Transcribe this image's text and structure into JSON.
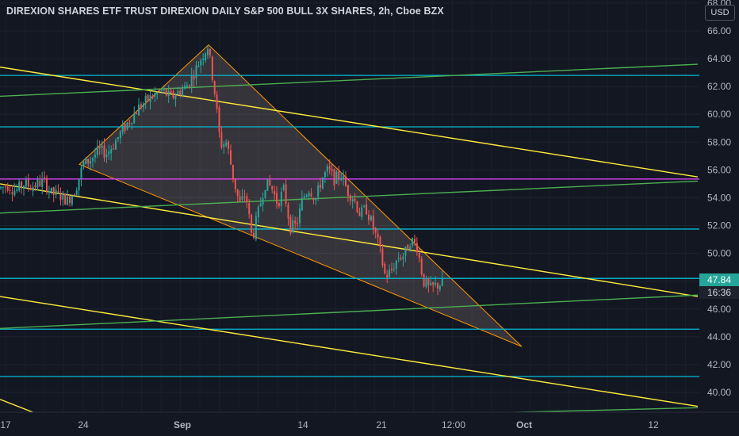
{
  "header": {
    "title": "DIREXION SHARES ETF TRUST DIREXION DAILY S&P 500 BULL 3X SHARES, 2h, Cboe BZX",
    "currency": "USD"
  },
  "price_labels": {
    "last_price": "47.84",
    "countdown": "16:36"
  },
  "colors": {
    "background": "#131722",
    "up": "#26a69a",
    "down": "#ef5350",
    "cyan": "#00bcd4",
    "yellow": "#ffeb3b",
    "green": "#4caf50",
    "magenta": "#e040fb",
    "orange": "#ff9800"
  },
  "chart_data": {
    "type": "candlestick",
    "ylim": [
      38.5,
      68.5
    ],
    "y_ticks": [
      "40.00",
      "42.00",
      "44.00",
      "46.00",
      "48.00",
      "50.00",
      "52.00",
      "54.00",
      "56.00",
      "58.00",
      "60.00",
      "62.00",
      "64.00",
      "66.00",
      "68.00"
    ],
    "x_ticks": [
      {
        "label": "17",
        "bold": false
      },
      {
        "label": "24",
        "bold": false
      },
      {
        "label": "Sep",
        "bold": true
      },
      {
        "label": "14",
        "bold": false
      },
      {
        "label": "21",
        "bold": false
      },
      {
        "label": "12:00",
        "bold": false
      },
      {
        "label": "Oct",
        "bold": true
      },
      {
        "label": "12",
        "bold": false
      }
    ],
    "candles_path": [
      [
        0,
        54.7
      ],
      [
        10,
        54.9
      ],
      [
        20,
        54.5
      ],
      [
        30,
        55.0
      ],
      [
        40,
        54.8
      ],
      [
        55,
        55.2
      ],
      [
        65,
        54.3
      ],
      [
        75,
        54.2
      ],
      [
        85,
        53.8
      ],
      [
        95,
        54.6
      ],
      [
        105,
        56.4
      ],
      [
        115,
        56.8
      ],
      [
        125,
        57.4
      ],
      [
        135,
        57.2
      ],
      [
        145,
        58.0
      ],
      [
        155,
        58.9
      ],
      [
        165,
        59.7
      ],
      [
        175,
        60.5
      ],
      [
        185,
        61.0
      ],
      [
        195,
        61.4
      ],
      [
        205,
        61.7
      ],
      [
        215,
        61.2
      ],
      [
        225,
        61.6
      ],
      [
        235,
        62.0
      ],
      [
        245,
        63.0
      ],
      [
        255,
        64.2
      ],
      [
        262,
        64.9
      ],
      [
        270,
        62.0
      ],
      [
        278,
        57.8
      ],
      [
        286,
        58.0
      ],
      [
        294,
        55.5
      ],
      [
        302,
        53.5
      ],
      [
        310,
        54.3
      ],
      [
        318,
        51.0
      ],
      [
        326,
        53.0
      ],
      [
        334,
        55.0
      ],
      [
        342,
        54.8
      ],
      [
        350,
        53.6
      ],
      [
        358,
        54.6
      ],
      [
        366,
        51.9
      ],
      [
        374,
        52.0
      ],
      [
        382,
        54.0
      ],
      [
        390,
        54.7
      ],
      [
        398,
        53.9
      ],
      [
        406,
        55.4
      ],
      [
        414,
        56.0
      ],
      [
        422,
        55.3
      ],
      [
        430,
        55.7
      ],
      [
        438,
        54.5
      ],
      [
        446,
        54.0
      ],
      [
        454,
        52.8
      ],
      [
        462,
        53.2
      ],
      [
        470,
        52.0
      ],
      [
        478,
        50.5
      ],
      [
        486,
        48.3
      ],
      [
        494,
        48.8
      ],
      [
        502,
        49.7
      ],
      [
        510,
        49.9
      ],
      [
        518,
        51.0
      ],
      [
        526,
        50.5
      ],
      [
        534,
        48.0
      ],
      [
        542,
        47.4
      ],
      [
        550,
        47.7
      ],
      [
        558,
        47.84
      ]
    ],
    "horizontal_levels": [
      {
        "price": 62.8,
        "color": "cyan"
      },
      {
        "price": 59.1,
        "color": "cyan"
      },
      {
        "price": 55.35,
        "color": "magenta"
      },
      {
        "price": 51.75,
        "color": "cyan"
      },
      {
        "price": 48.2,
        "color": "cyan"
      },
      {
        "price": 44.55,
        "color": "cyan"
      },
      {
        "price": 41.15,
        "color": "cyan"
      }
    ],
    "trendlines": [
      {
        "color": "yellow",
        "p1": [
          0,
          63.4
        ],
        "p2": [
          880,
          55.5
        ]
      },
      {
        "color": "yellow",
        "p1": [
          0,
          55.0
        ],
        "p2": [
          880,
          46.9
        ]
      },
      {
        "color": "yellow",
        "p1": [
          0,
          46.9
        ],
        "p2": [
          880,
          39.0
        ]
      },
      {
        "color": "yellow",
        "p1": [
          0,
          39.5
        ],
        "p2": [
          45,
          38.5
        ]
      },
      {
        "color": "green",
        "p1": [
          0,
          61.3
        ],
        "p2": [
          880,
          63.6
        ]
      },
      {
        "color": "green",
        "p1": [
          0,
          52.9
        ],
        "p2": [
          880,
          55.2
        ]
      },
      {
        "color": "green",
        "p1": [
          0,
          44.6
        ],
        "p2": [
          880,
          47.0
        ]
      },
      {
        "color": "green",
        "p1": [
          600,
          38.5
        ],
        "p2": [
          880,
          38.9
        ]
      }
    ],
    "triangle": {
      "points": [
        [
          100,
          56.4
        ],
        [
          263,
          65.0
        ],
        [
          658,
          43.3
        ]
      ]
    }
  }
}
